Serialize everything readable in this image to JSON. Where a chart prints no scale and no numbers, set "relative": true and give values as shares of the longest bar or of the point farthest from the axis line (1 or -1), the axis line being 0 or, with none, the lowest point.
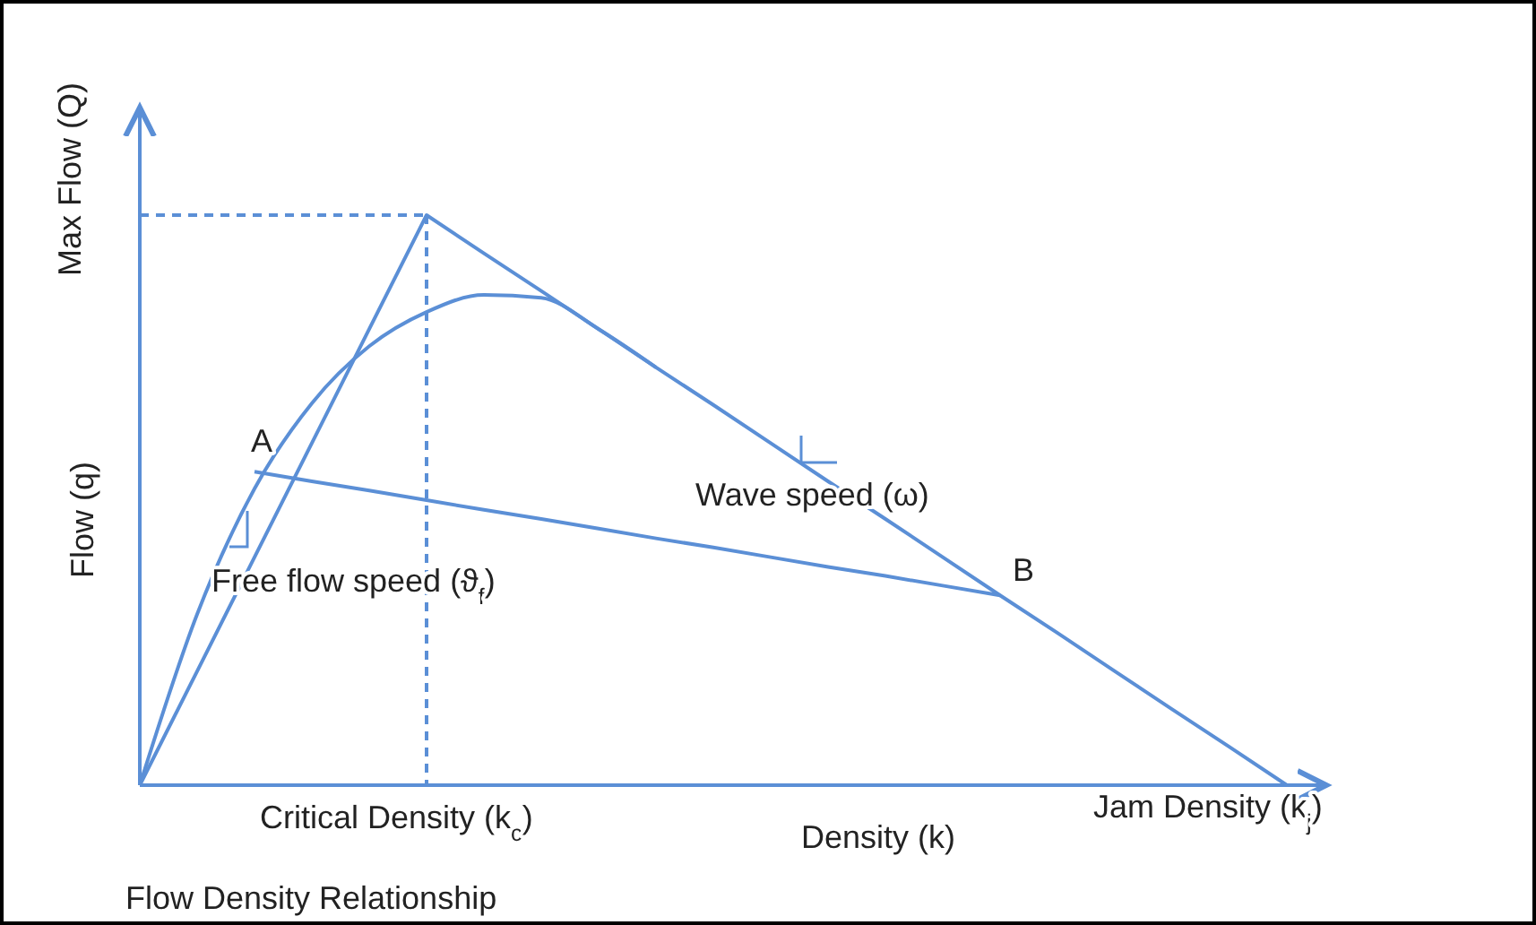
{
  "chart_data": {
    "type": "line",
    "relative": true,
    "title": "Flow Density Relationship",
    "xlabel": "Density (k)",
    "ylabel": "Flow (q)",
    "categories": [
      null,
      null,
      null,
      null,
      null,
      null,
      null,
      null,
      null,
      null,
      null,
      null,
      null,
      null,
      null,
      null,
      null,
      null,
      null,
      null,
      null
    ],
    "series": [
      {
        "color": "#5b8fd6",
        "values": [
          0,
          0.3,
          0.52,
          0.67,
          0.77,
          0.83,
          0.86,
          0.855,
          0.8,
          0.733,
          null,
          null,
          null,
          null,
          null,
          null,
          null,
          null,
          null,
          null,
          null
        ]
      },
      {
        "color": "#5b8fd6",
        "values": [
          0,
          0.2,
          0.4,
          0.6,
          0.8,
          1,
          0.933,
          0.867,
          0.8,
          0.733,
          0.667,
          0.6,
          0.533,
          0.467,
          0.4,
          0.333,
          0.267,
          0.2,
          0.133,
          0.067,
          0
        ]
      },
      {
        "color": "#5b8fd6",
        "values": [
          null,
          null,
          0.55,
          0.533,
          0.517,
          0.5,
          0.483,
          0.467,
          0.45,
          0.433,
          0.417,
          0.4,
          0.383,
          0.367,
          0.35,
          0.333,
          null,
          null,
          null,
          null,
          null
        ]
      },
      {
        "color": "#5b8fd6",
        "values": [
          1,
          1,
          1,
          1,
          1,
          1,
          null,
          null,
          null,
          null,
          null,
          null,
          null,
          null,
          null,
          null,
          null,
          null,
          null,
          null,
          null
        ],
        "line_style": "dashed"
      }
    ],
    "annotations": [
      "Max Flow (Q)",
      "Critical Density (k$_{c}$)",
      "Jam Density (k$_{j}$)",
      "A",
      "B",
      "Wave speed (ω)",
      "Free flow speed (ϑ$_{f}$)"
    ]
  }
}
